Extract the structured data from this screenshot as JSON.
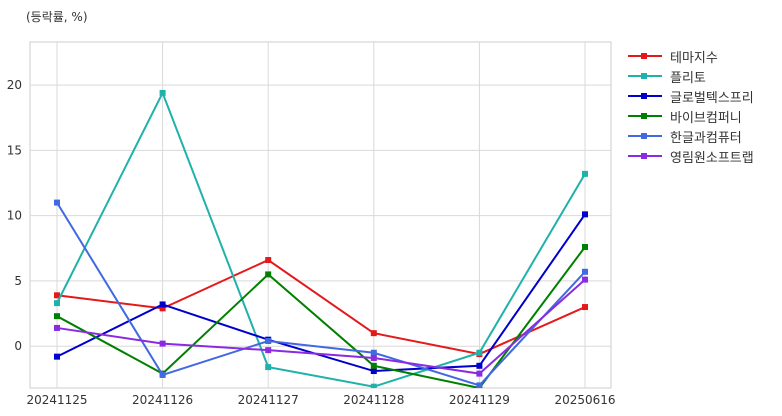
{
  "chart_data": {
    "type": "line",
    "ylabel": "(등락률, %)",
    "categories": [
      "20241125",
      "20241126",
      "20241127",
      "20241128",
      "20241129",
      "20250616"
    ],
    "yticks": [
      0,
      5,
      10,
      15,
      20
    ],
    "ylim": [
      -3.2,
      23.3
    ],
    "grid": true,
    "legend_position": "right",
    "series": [
      {
        "name": "테마지수",
        "color": "#e31a1c",
        "values": [
          3.9,
          2.9,
          6.6,
          1.0,
          -0.6,
          3.0
        ]
      },
      {
        "name": "플리토",
        "color": "#20b2aa",
        "values": [
          3.3,
          19.4,
          -1.6,
          -3.1,
          -0.5,
          13.2
        ]
      },
      {
        "name": "글로벌텍스프리",
        "color": "#0000cd",
        "values": [
          -0.8,
          3.2,
          0.5,
          -1.9,
          -1.5,
          10.1
        ]
      },
      {
        "name": "바이브컴퍼니",
        "color": "#008000",
        "values": [
          2.3,
          -2.1,
          5.5,
          -1.5,
          -3.2,
          7.6
        ]
      },
      {
        "name": "한글과컴퓨터",
        "color": "#4169e1",
        "values": [
          11.0,
          -2.2,
          0.4,
          -0.5,
          -3.0,
          5.7
        ]
      },
      {
        "name": "영림원소프트랩",
        "color": "#8a2be2",
        "values": [
          1.4,
          0.2,
          -0.3,
          -0.9,
          -2.1,
          5.1
        ]
      }
    ]
  }
}
